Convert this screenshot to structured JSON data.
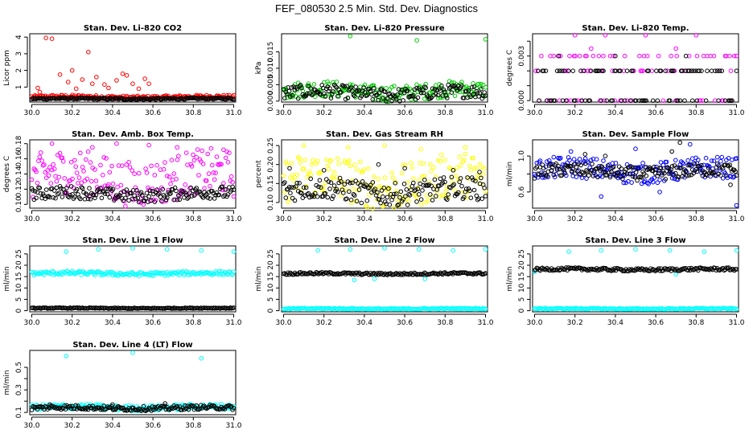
{
  "figure_title": "FEF_080530  2.5 Min. Std. Dev. Diagnostics",
  "colors": {
    "red": "#ff0000",
    "green": "#00cc00",
    "magenta": "#ff00ff",
    "yellow": "#ffff00",
    "blue": "#0000ff",
    "cyan": "#00ffff",
    "black": "#000000"
  },
  "chart_data": [
    {
      "type": "scatter",
      "title": "Stan. Dev. Li-820 CO2",
      "ylabel": "Licor ppm",
      "xlim": [
        29.99,
        31.01
      ],
      "ylim": [
        0.1,
        4.2
      ],
      "xticks": [
        "30.0",
        "30.2",
        "30.4",
        "30.6",
        "30.8",
        "31.0"
      ],
      "yticks": [
        1,
        2,
        3,
        4
      ],
      "yticklabels": [
        "1",
        "2",
        "3",
        "4"
      ],
      "series": [
        {
          "color": "red",
          "band": [
            0.3,
            0.5
          ],
          "outliers": [
            [
              30.03,
              0.95
            ],
            [
              30.04,
              0.7
            ],
            [
              30.07,
              3.95
            ],
            [
              30.1,
              3.9
            ],
            [
              30.14,
              1.75
            ],
            [
              30.18,
              1.3
            ],
            [
              30.2,
              2.0
            ],
            [
              30.22,
              0.9
            ],
            [
              30.25,
              1.45
            ],
            [
              30.28,
              3.1
            ],
            [
              30.3,
              1.2
            ],
            [
              30.32,
              1.6
            ],
            [
              30.36,
              1.15
            ],
            [
              30.38,
              0.95
            ],
            [
              30.42,
              1.4
            ],
            [
              30.45,
              1.8
            ],
            [
              30.47,
              1.7
            ],
            [
              30.5,
              1.2
            ],
            [
              30.53,
              0.9
            ],
            [
              30.56,
              1.5
            ],
            [
              30.58,
              1.2
            ]
          ]
        },
        {
          "color": "black",
          "band": [
            0.25,
            0.35
          ],
          "outliers": []
        }
      ]
    },
    {
      "type": "scatter",
      "title": "Stan. Dev. Li-820 Pressure",
      "ylabel": "kPa",
      "xlim": [
        29.99,
        31.01
      ],
      "ylim": [
        -0.0003,
        0.0205
      ],
      "xticks": [
        "30.0",
        "30.2",
        "30.4",
        "30.6",
        "30.8",
        "31.0"
      ],
      "yticks": [
        0.0,
        0.005,
        0.01,
        0.015
      ],
      "yticklabels": [
        "0.000",
        "0.005",
        "0.010",
        "0.015"
      ],
      "series": [
        {
          "color": "green",
          "band": [
            0.0005,
            0.0055
          ],
          "outliers": [
            [
              30.33,
              0.0198
            ],
            [
              30.66,
              0.0185
            ],
            [
              31.0,
              0.0188
            ]
          ]
        },
        {
          "color": "black",
          "band": [
            0.0003,
            0.0045
          ],
          "outliers": []
        }
      ]
    },
    {
      "type": "scatter",
      "title": "Stan. Dev. Li-820 Temp.",
      "ylabel": "degrees C",
      "xlim": [
        29.99,
        31.01
      ],
      "ylim": [
        -0.0001,
        0.0045
      ],
      "xticks": [
        "30.0",
        "30.2",
        "30.4",
        "30.6",
        "30.8",
        "31.0"
      ],
      "yticks": [
        0.0,
        0.001,
        0.002,
        0.003,
        0.004
      ],
      "yticklabels": [
        "0.000",
        "",
        "",
        "0.003",
        ""
      ],
      "series": [
        {
          "color": "magenta",
          "levels": [
            0.0,
            0.002,
            0.003
          ],
          "outliers": [
            [
              30.2,
              0.0044
            ],
            [
              30.35,
              0.0044
            ],
            [
              30.55,
              0.0044
            ],
            [
              30.8,
              0.0044
            ],
            [
              30.28,
              0.0035
            ],
            [
              30.7,
              0.0035
            ]
          ]
        },
        {
          "color": "black",
          "levels": [
            0.0,
            0.002
          ],
          "outliers": [
            [
              30.12,
              0.003
            ],
            [
              30.4,
              0.003
            ],
            [
              30.75,
              0.003
            ]
          ]
        }
      ]
    },
    {
      "type": "scatter",
      "title": "Stan. Dev. Amb. Box Temp.",
      "ylabel": "degrees C",
      "xlim": [
        29.99,
        31.01
      ],
      "ylim": [
        0.095,
        0.185
      ],
      "xticks": [
        "30.0",
        "30.2",
        "30.4",
        "30.6",
        "30.8",
        "31.0"
      ],
      "yticks": [
        0.1,
        0.12,
        0.14,
        0.16,
        0.18
      ],
      "yticklabels": [
        "0.10",
        "0.12",
        "0.14",
        "0.16",
        "0.18"
      ],
      "series": [
        {
          "color": "magenta",
          "band": [
            0.105,
            0.165
          ],
          "outliers": [
            [
              30.1,
              0.18
            ],
            [
              30.3,
              0.175
            ],
            [
              30.42,
              0.18
            ],
            [
              30.58,
              0.178
            ],
            [
              30.72,
              0.175
            ],
            [
              30.95,
              0.172
            ]
          ]
        },
        {
          "color": "black",
          "band": [
            0.105,
            0.122
          ],
          "outliers": []
        }
      ]
    },
    {
      "type": "scatter",
      "title": "Stan. Dev. Gas Stream RH",
      "ylabel": "percent",
      "xlim": [
        29.99,
        31.01
      ],
      "ylim": [
        0.085,
        0.265
      ],
      "xticks": [
        "30.0",
        "30.2",
        "30.4",
        "30.6",
        "30.8",
        "31.0"
      ],
      "yticks": [
        0.1,
        0.15,
        0.2,
        0.25
      ],
      "yticklabels": [
        "0.10",
        "0.15",
        "0.20",
        "0.25"
      ],
      "series": [
        {
          "color": "yellow",
          "band": [
            0.095,
            0.215
          ],
          "outliers": [
            [
              30.1,
              0.25
            ],
            [
              30.32,
              0.245
            ],
            [
              30.5,
              0.25
            ],
            [
              30.68,
              0.24
            ],
            [
              30.9,
              0.245
            ]
          ]
        },
        {
          "color": "black",
          "band": [
            0.1,
            0.16
          ],
          "outliers": [
            [
              30.03,
              0.19
            ],
            [
              30.2,
              0.185
            ],
            [
              30.47,
              0.2
            ],
            [
              30.6,
              0.19
            ],
            [
              30.84,
              0.185
            ],
            [
              30.97,
              0.18
            ]
          ]
        }
      ]
    },
    {
      "type": "scatter",
      "title": "Stan. Dev. Sample Flow",
      "ylabel": "ml/min",
      "xlim": [
        29.99,
        31.01
      ],
      "ylim": [
        0.42,
        1.18
      ],
      "xticks": [
        "30.0",
        "30.2",
        "30.4",
        "30.6",
        "30.8",
        "31.0"
      ],
      "yticks": [
        0.6,
        0.8,
        1.0
      ],
      "yticklabels": [
        "0.6",
        "",
        "1.0"
      ],
      "series": [
        {
          "color": "blue",
          "band": [
            0.72,
            0.96
          ],
          "outliers": [
            [
              30.33,
              0.55
            ],
            [
              30.62,
              0.6
            ],
            [
              30.77,
              1.13
            ],
            [
              31.0,
              0.45
            ],
            [
              30.18,
              1.05
            ],
            [
              30.5,
              1.08
            ]
          ]
        },
        {
          "color": "black",
          "band": [
            0.75,
            0.9
          ],
          "outliers": [
            [
              30.25,
              1.02
            ],
            [
              30.35,
              1.0
            ],
            [
              30.68,
              1.05
            ],
            [
              30.72,
              1.15
            ],
            [
              30.97,
              0.68
            ]
          ]
        }
      ]
    },
    {
      "type": "scatter",
      "title": "Stan. Dev. Line 1 Flow",
      "ylabel": "ml/min",
      "xlim": [
        29.99,
        31.01
      ],
      "ylim": [
        -0.5,
        28.5
      ],
      "xticks": [
        "30.0",
        "30.2",
        "30.4",
        "30.6",
        "30.8",
        "31.0"
      ],
      "yticks": [
        0,
        5,
        10,
        15,
        20,
        25
      ],
      "yticklabels": [
        "0",
        "5",
        "10",
        "15",
        "20",
        "25"
      ],
      "series": [
        {
          "color": "cyan",
          "band": [
            15.5,
            17.2
          ],
          "outliers": [
            [
              30.17,
              26.0
            ],
            [
              30.33,
              27.0
            ],
            [
              30.5,
              27.5
            ],
            [
              30.67,
              27.0
            ],
            [
              30.84,
              26.5
            ],
            [
              31.0,
              26.0
            ]
          ]
        },
        {
          "color": "black",
          "band": [
            0.9,
            1.3
          ],
          "outliers": []
        }
      ]
    },
    {
      "type": "scatter",
      "title": "Stan. Dev. Line 2 Flow",
      "ylabel": "ml/min",
      "xlim": [
        29.99,
        31.01
      ],
      "ylim": [
        -0.5,
        28.5
      ],
      "xticks": [
        "30.0",
        "30.2",
        "30.4",
        "30.6",
        "30.8",
        "31.0"
      ],
      "yticks": [
        0,
        5,
        10,
        15,
        20,
        25
      ],
      "yticklabels": [
        "0",
        "5",
        "10",
        "15",
        "20",
        "25"
      ],
      "series": [
        {
          "color": "cyan",
          "band": [
            0.6,
            1.1
          ],
          "outliers": [
            [
              30.17,
              26.5
            ],
            [
              30.33,
              27.0
            ],
            [
              30.5,
              27.5
            ],
            [
              30.67,
              27.0
            ],
            [
              30.84,
              26.5
            ],
            [
              31.0,
              27.0
            ],
            [
              30.35,
              13.5
            ],
            [
              30.45,
              14.0
            ],
            [
              30.7,
              14.0
            ]
          ]
        },
        {
          "color": "black",
          "band": [
            15.8,
            16.8
          ],
          "outliers": []
        }
      ]
    },
    {
      "type": "scatter",
      "title": "Stan. Dev. Line 3 Flow",
      "ylabel": "ml/min",
      "xlim": [
        29.99,
        31.01
      ],
      "ylim": [
        -0.5,
        28.5
      ],
      "xticks": [
        "30.0",
        "30.2",
        "30.4",
        "30.6",
        "30.8",
        "31.0"
      ],
      "yticks": [
        0,
        5,
        10,
        15,
        20,
        25
      ],
      "yticklabels": [
        "0",
        "5",
        "10",
        "15",
        "20",
        "25"
      ],
      "series": [
        {
          "color": "cyan",
          "band": [
            0.6,
            1.1
          ],
          "outliers": [
            [
              30.17,
              26.0
            ],
            [
              30.33,
              26.5
            ],
            [
              30.5,
              27.0
            ],
            [
              30.67,
              26.5
            ],
            [
              30.84,
              26.0
            ],
            [
              31.0,
              26.5
            ],
            [
              30.0,
              17.0
            ],
            [
              30.7,
              16.0
            ]
          ]
        },
        {
          "color": "black",
          "band": [
            17.5,
            18.8
          ],
          "outliers": []
        }
      ]
    },
    {
      "type": "scatter",
      "title": "Stan. Dev. Line 4 (LT) Flow",
      "ylabel": "ml/min",
      "xlim": [
        29.99,
        31.01
      ],
      "ylim": [
        0.08,
        0.65
      ],
      "xticks": [
        "30.0",
        "30.2",
        "30.4",
        "30.6",
        "30.8",
        "31.0"
      ],
      "yticks": [
        0.1,
        0.2,
        0.3,
        0.4,
        0.5
      ],
      "yticklabels": [
        "0.1",
        "",
        "0.3",
        "",
        "0.5"
      ],
      "series": [
        {
          "color": "cyan",
          "band": [
            0.12,
            0.17
          ],
          "outliers": [
            [
              30.17,
              0.6
            ],
            [
              30.5,
              0.63
            ],
            [
              30.84,
              0.58
            ]
          ]
        },
        {
          "color": "black",
          "band": [
            0.12,
            0.16
          ],
          "outliers": [
            [
              30.09,
              0.17
            ],
            [
              30.4,
              0.17
            ],
            [
              30.66,
              0.18
            ]
          ]
        }
      ]
    }
  ]
}
